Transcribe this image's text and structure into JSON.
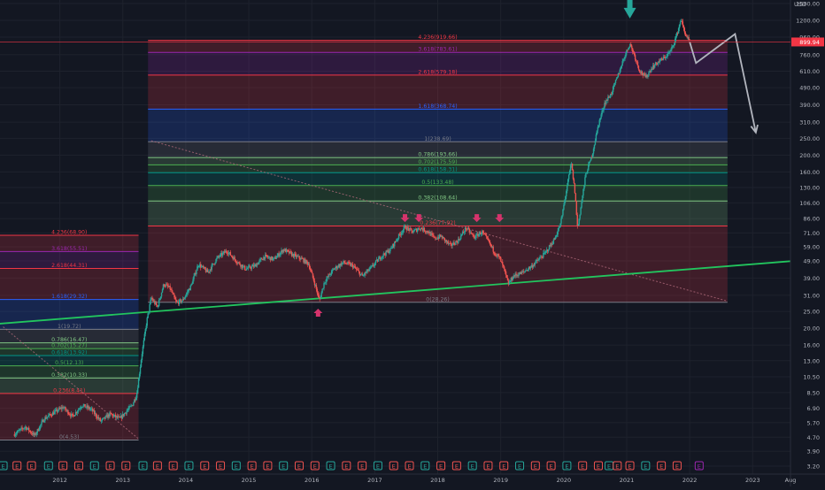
{
  "chart_data": {
    "type": "candlestick",
    "scale": "log",
    "currency": "USD",
    "ylim": [
      3.0,
      1500
    ],
    "y_ticks": [
      "1500.00",
      "1200.00",
      "960.00",
      "760.00",
      "610.00",
      "490.00",
      "390.00",
      "310.00",
      "250.00",
      "200.00",
      "160.00",
      "130.00",
      "106.00",
      "86.00",
      "71.00",
      "59.00",
      "49.00",
      "39.00",
      "31.00",
      "25.00",
      "20.00",
      "16.00",
      "13.00",
      "10.50",
      "8.50",
      "6.90",
      "5.70",
      "4.70",
      "3.90",
      "3.20"
    ],
    "x_ticks": [
      {
        "label": "2012",
        "t": 2012.0
      },
      {
        "label": "2013",
        "t": 2013.0
      },
      {
        "label": "2014",
        "t": 2014.0
      },
      {
        "label": "2015",
        "t": 2015.0
      },
      {
        "label": "2016",
        "t": 2016.0
      },
      {
        "label": "2017",
        "t": 2017.0
      },
      {
        "label": "2018",
        "t": 2018.0
      },
      {
        "label": "2019",
        "t": 2019.0
      },
      {
        "label": "2020",
        "t": 2020.0
      },
      {
        "label": "2021",
        "t": 2021.0
      },
      {
        "label": "2022",
        "t": 2022.0
      },
      {
        "label": "2023",
        "t": 2023.0
      },
      {
        "label": "Aug",
        "t": 2023.6
      }
    ],
    "last_price": "899.94",
    "price_path": [
      [
        2011.28,
        4.9
      ],
      [
        2011.45,
        5.4
      ],
      [
        2011.6,
        4.8
      ],
      [
        2011.75,
        6.0
      ],
      [
        2011.9,
        6.5
      ],
      [
        2012.05,
        7.0
      ],
      [
        2012.2,
        6.2
      ],
      [
        2012.35,
        7.2
      ],
      [
        2012.5,
        6.8
      ],
      [
        2012.65,
        5.8
      ],
      [
        2012.8,
        6.4
      ],
      [
        2012.95,
        6.0
      ],
      [
        2013.05,
        6.6
      ],
      [
        2013.15,
        7.2
      ],
      [
        2013.22,
        8.3
      ],
      [
        2013.3,
        14.0
      ],
      [
        2013.38,
        22.0
      ],
      [
        2013.45,
        30.0
      ],
      [
        2013.55,
        26.5
      ],
      [
        2013.65,
        36.0
      ],
      [
        2013.75,
        34.0
      ],
      [
        2013.85,
        28.0
      ],
      [
        2013.95,
        29.0
      ],
      [
        2014.08,
        35.0
      ],
      [
        2014.2,
        47.0
      ],
      [
        2014.35,
        42.0
      ],
      [
        2014.5,
        51.0
      ],
      [
        2014.65,
        56.0
      ],
      [
        2014.8,
        49.0
      ],
      [
        2014.95,
        44.0
      ],
      [
        2015.1,
        46.0
      ],
      [
        2015.25,
        52.0
      ],
      [
        2015.4,
        50.0
      ],
      [
        2015.55,
        57.0
      ],
      [
        2015.7,
        53.0
      ],
      [
        2015.85,
        50.0
      ],
      [
        2015.95,
        47.0
      ],
      [
        2016.05,
        36.0
      ],
      [
        2016.12,
        29.0
      ],
      [
        2016.2,
        37.0
      ],
      [
        2016.35,
        44.0
      ],
      [
        2016.5,
        48.0
      ],
      [
        2016.65,
        46.0
      ],
      [
        2016.8,
        40.0
      ],
      [
        2016.95,
        45.0
      ],
      [
        2017.1,
        52.0
      ],
      [
        2017.25,
        57.0
      ],
      [
        2017.4,
        70.0
      ],
      [
        2017.48,
        77.0
      ],
      [
        2017.6,
        72.0
      ],
      [
        2017.72,
        76.0
      ],
      [
        2017.85,
        72.0
      ],
      [
        2017.95,
        66.0
      ],
      [
        2018.05,
        68.0
      ],
      [
        2018.2,
        60.0
      ],
      [
        2018.32,
        64.0
      ],
      [
        2018.45,
        76.0
      ],
      [
        2018.58,
        67.0
      ],
      [
        2018.7,
        72.0
      ],
      [
        2018.8,
        64.0
      ],
      [
        2018.9,
        55.0
      ],
      [
        2018.98,
        51.0
      ],
      [
        2019.05,
        44.0
      ],
      [
        2019.12,
        36.0
      ],
      [
        2019.2,
        40.0
      ],
      [
        2019.35,
        42.0
      ],
      [
        2019.5,
        46.0
      ],
      [
        2019.7,
        54.0
      ],
      [
        2019.85,
        65.0
      ],
      [
        2019.95,
        80.0
      ],
      [
        2020.05,
        130.0
      ],
      [
        2020.12,
        180.0
      ],
      [
        2020.18,
        120.0
      ],
      [
        2020.22,
        75.0
      ],
      [
        2020.28,
        105.0
      ],
      [
        2020.35,
        155.0
      ],
      [
        2020.45,
        200.0
      ],
      [
        2020.55,
        300.0
      ],
      [
        2020.65,
        400.0
      ],
      [
        2020.75,
        450.0
      ],
      [
        2020.85,
        560.0
      ],
      [
        2020.95,
        720.0
      ],
      [
        2021.05,
        880.0
      ],
      [
        2021.12,
        760.0
      ],
      [
        2021.2,
        620.0
      ],
      [
        2021.3,
        560.0
      ],
      [
        2021.4,
        640.0
      ],
      [
        2021.5,
        690.0
      ],
      [
        2021.6,
        730.0
      ],
      [
        2021.7,
        800.0
      ],
      [
        2021.8,
        1000.0
      ],
      [
        2021.86,
        1220.0
      ],
      [
        2021.92,
        1020.0
      ],
      [
        2022.0,
        900.0
      ]
    ],
    "projection": [
      [
        2022.0,
        900.0
      ],
      [
        2022.1,
        680.0
      ],
      [
        2022.72,
        1000.0
      ],
      [
        2023.05,
        270.0
      ]
    ],
    "fib_sets": [
      {
        "t_start": 2011.05,
        "t_end": 2013.25,
        "levels": [
          {
            "label": "4.236(68.90)",
            "v": 68.9,
            "color": "#f23645"
          },
          {
            "label": "3.618(55.51)",
            "v": 55.51,
            "color": "#9c27b0"
          },
          {
            "label": "2.618(44.31)",
            "v": 44.31,
            "color": "#f23645"
          },
          {
            "label": "1.618(29.32)",
            "v": 29.32,
            "color": "#2962ff"
          },
          {
            "label": "1(19.72)",
            "v": 19.72,
            "color": "#787b86"
          },
          {
            "label": "0.786(16.47)",
            "v": 16.47,
            "color": "#81c784"
          },
          {
            "label": "0.702(15.27)",
            "v": 15.27,
            "color": "#4caf50"
          },
          {
            "label": "0.618(13.92)",
            "v": 13.92,
            "color": "#009688"
          },
          {
            "label": "0.5(12.13)",
            "v": 12.13,
            "color": "#4caf50"
          },
          {
            "label": "0.382(10.33)",
            "v": 10.33,
            "color": "#81c784"
          },
          {
            "label": "0.236(8.41)",
            "v": 8.41,
            "color": "#f23645"
          },
          {
            "label": "0(4.53)",
            "v": 4.53,
            "color": "#787b86"
          }
        ]
      },
      {
        "t_start": 2013.4,
        "t_end": 2022.6,
        "levels": [
          {
            "label": "4.236(919.66)",
            "v": 919.66,
            "color": "#f23645"
          },
          {
            "label": "3.618(783.61)",
            "v": 783.61,
            "color": "#9c27b0"
          },
          {
            "label": "2.618(579.18)",
            "v": 579.18,
            "color": "#f23645"
          },
          {
            "label": "1.618(368.74)",
            "v": 368.74,
            "color": "#2962ff"
          },
          {
            "label": "1(238.69)",
            "v": 238.69,
            "color": "#787b86"
          },
          {
            "label": "0.786(193.66)",
            "v": 193.66,
            "color": "#81c784"
          },
          {
            "label": "0.702(175.59)",
            "v": 175.59,
            "color": "#4caf50"
          },
          {
            "label": "0.618(158.31)",
            "v": 158.31,
            "color": "#009688"
          },
          {
            "label": "0.5(133.48)",
            "v": 133.48,
            "color": "#4caf50"
          },
          {
            "label": "0.382(108.64)",
            "v": 108.64,
            "color": "#81c784"
          },
          {
            "label": "0.236(77.92)",
            "v": 77.92,
            "color": "#f23645"
          },
          {
            "label": "0(28.26)",
            "v": 28.26,
            "color": "#787b86"
          }
        ]
      }
    ],
    "trendline": {
      "p1": [
        2011.0,
        21.2
      ],
      "p2": [
        2023.6,
        48.8
      ],
      "color": "#22c55e"
    },
    "dashed_lines": [
      {
        "p1": [
          2011.1,
          20.4
        ],
        "p2": [
          2013.25,
          4.6
        ]
      },
      {
        "p1": [
          2013.45,
          242.0
        ],
        "p2": [
          2022.6,
          28.7
        ]
      }
    ],
    "markers": [
      {
        "type": "down",
        "t": 2016.1,
        "v": 28.0,
        "color": "#d6336c"
      },
      {
        "type": "down",
        "t": 2017.48,
        "v": 83.0,
        "color": "#d6336c"
      },
      {
        "type": "down",
        "t": 2017.7,
        "v": 83.0,
        "color": "#d6336c"
      },
      {
        "type": "down",
        "t": 2018.62,
        "v": 83.0,
        "color": "#d6336c"
      },
      {
        "type": "down",
        "t": 2018.98,
        "v": 83.0,
        "color": "#d6336c"
      },
      {
        "type": "down_big",
        "t": 2021.05,
        "v": 1450.0,
        "color": "#26a69a"
      }
    ],
    "events": [
      {
        "label": "E",
        "t": 2011.1,
        "kind": "earnings"
      },
      {
        "label": "E",
        "t": 2011.32,
        "kind": "earnings"
      },
      {
        "label": "E",
        "t": 2011.55,
        "kind": "earnings"
      },
      {
        "label": "E",
        "t": 2011.82,
        "kind": "earnings"
      },
      {
        "label": "E",
        "t": 2012.05,
        "kind": "earnings"
      },
      {
        "label": "E",
        "t": 2012.3,
        "kind": "earnings"
      },
      {
        "label": "E",
        "t": 2012.55,
        "kind": "earnings"
      },
      {
        "label": "E",
        "t": 2012.8,
        "kind": "earnings"
      },
      {
        "label": "E",
        "t": 2013.05,
        "kind": "earnings"
      },
      {
        "label": "E",
        "t": 2013.32,
        "kind": "earnings"
      },
      {
        "label": "E",
        "t": 2013.55,
        "kind": "earnings"
      },
      {
        "label": "E",
        "t": 2013.8,
        "kind": "earnings"
      },
      {
        "label": "E",
        "t": 2014.05,
        "kind": "earnings"
      },
      {
        "label": "E",
        "t": 2014.3,
        "kind": "earnings"
      },
      {
        "label": "E",
        "t": 2014.55,
        "kind": "earnings"
      },
      {
        "label": "E",
        "t": 2014.8,
        "kind": "earnings"
      },
      {
        "label": "E",
        "t": 2015.05,
        "kind": "earnings"
      },
      {
        "label": "E",
        "t": 2015.3,
        "kind": "earnings"
      },
      {
        "label": "E",
        "t": 2015.55,
        "kind": "earnings"
      },
      {
        "label": "E",
        "t": 2015.8,
        "kind": "earnings"
      },
      {
        "label": "E",
        "t": 2016.05,
        "kind": "earnings"
      },
      {
        "label": "E",
        "t": 2016.3,
        "kind": "earnings"
      },
      {
        "label": "E",
        "t": 2016.55,
        "kind": "earnings"
      },
      {
        "label": "E",
        "t": 2016.8,
        "kind": "earnings"
      },
      {
        "label": "E",
        "t": 2017.05,
        "kind": "earnings"
      },
      {
        "label": "E",
        "t": 2017.3,
        "kind": "earnings"
      },
      {
        "label": "E",
        "t": 2017.55,
        "kind": "earnings"
      },
      {
        "label": "E",
        "t": 2017.8,
        "kind": "earnings"
      },
      {
        "label": "E",
        "t": 2018.05,
        "kind": "earnings"
      },
      {
        "label": "E",
        "t": 2018.3,
        "kind": "earnings"
      },
      {
        "label": "E",
        "t": 2018.55,
        "kind": "earnings"
      },
      {
        "label": "E",
        "t": 2018.8,
        "kind": "earnings"
      },
      {
        "label": "E",
        "t": 2019.05,
        "kind": "earnings"
      },
      {
        "label": "E",
        "t": 2019.3,
        "kind": "earnings"
      },
      {
        "label": "E",
        "t": 2019.55,
        "kind": "earnings"
      },
      {
        "label": "E",
        "t": 2019.8,
        "kind": "earnings"
      },
      {
        "label": "E",
        "t": 2020.05,
        "kind": "earnings"
      },
      {
        "label": "E",
        "t": 2020.3,
        "kind": "earnings"
      },
      {
        "label": "E",
        "t": 2020.55,
        "kind": "earnings"
      },
      {
        "label": "E",
        "t": 2020.72,
        "kind": "earnings"
      },
      {
        "label": "E",
        "t": 2020.85,
        "kind": "earnings"
      },
      {
        "label": "E",
        "t": 2021.05,
        "kind": "earnings"
      },
      {
        "label": "E",
        "t": 2021.3,
        "kind": "earnings"
      },
      {
        "label": "E",
        "t": 2021.55,
        "kind": "earnings"
      },
      {
        "label": "E",
        "t": 2021.8,
        "kind": "earnings"
      },
      {
        "label": "E",
        "t": 2022.15,
        "kind": "future"
      }
    ],
    "colors": {
      "background": "#131722",
      "up": "#26a69a",
      "down": "#ef5350",
      "axis_text": "#b2b5be",
      "grid": "#1e222d",
      "price_line": "#f23645",
      "projection": "#b2b5be"
    }
  }
}
